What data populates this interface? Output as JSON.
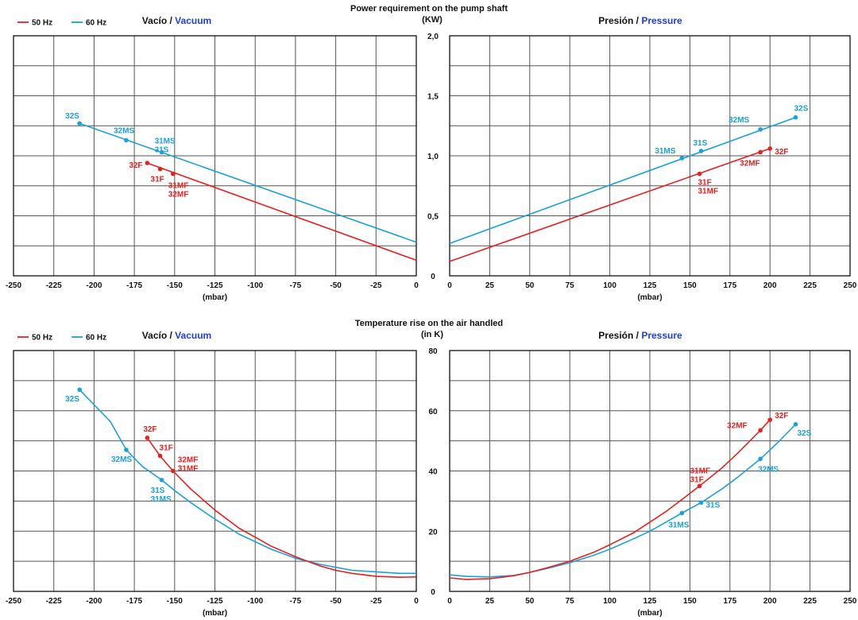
{
  "colors": {
    "hz50": "#e8201f",
    "hz60": "#1aa0dd",
    "accent": "#1f3fd6",
    "grid": "#555555"
  },
  "chart_data": [
    {
      "type": "line",
      "title": "Power requirement on the pump shaft",
      "ylabel": "(KW)",
      "xlabel": "(mbar)",
      "legend": [
        {
          "name": "50 Hz",
          "color": "#e8201f"
        },
        {
          "name": "60 Hz",
          "color": "#1aa0dd"
        }
      ],
      "ylim": [
        0,
        2.0
      ],
      "yticks": [
        "0",
        "0,5",
        "1,0",
        "1,5",
        "2,0"
      ],
      "left": {
        "title_a": "Vacío",
        "title_sep": " / ",
        "title_b": "Vacuum",
        "xlim": [
          -250,
          0
        ],
        "xticks": [
          "-250",
          "-225",
          "-200",
          "-175",
          "-150",
          "-125",
          "-100",
          "-75",
          "-50",
          "-25",
          "0"
        ],
        "series": [
          {
            "name": "60 Hz",
            "x": [
              -209,
              0
            ],
            "y": [
              1.27,
              0.28
            ]
          },
          {
            "name": "50 Hz",
            "x": [
              -167,
              0
            ],
            "y": [
              0.94,
              0.13
            ]
          }
        ],
        "points": [
          {
            "series": "60 Hz",
            "x": -209,
            "y": 1.27,
            "labels": [
              "32S"
            ]
          },
          {
            "series": "60 Hz",
            "x": -180,
            "y": 1.13,
            "labels": [
              "32MS"
            ]
          },
          {
            "series": "60 Hz",
            "x": -158,
            "y": 1.03,
            "labels": [
              "31MS",
              "31S"
            ]
          },
          {
            "series": "50 Hz",
            "x": -167,
            "y": 0.94,
            "labels": [
              "32F"
            ]
          },
          {
            "series": "50 Hz",
            "x": -159,
            "y": 0.89,
            "labels": [
              "31F"
            ]
          },
          {
            "series": "50 Hz",
            "x": -151,
            "y": 0.85,
            "labels": [
              "31MF",
              "32MF"
            ]
          }
        ]
      },
      "right": {
        "title_a": "Presión",
        "title_sep": " / ",
        "title_b": "Pressure",
        "xlim": [
          0,
          250
        ],
        "xticks": [
          "0",
          "25",
          "50",
          "75",
          "100",
          "125",
          "150",
          "175",
          "200",
          "225",
          "250"
        ],
        "series": [
          {
            "name": "60 Hz",
            "x": [
              0,
              216
            ],
            "y": [
              0.27,
              1.32
            ]
          },
          {
            "name": "50 Hz",
            "x": [
              0,
              200
            ],
            "y": [
              0.12,
              1.06
            ]
          }
        ],
        "points": [
          {
            "series": "60 Hz",
            "x": 216,
            "y": 1.32,
            "labels": [
              "32S"
            ]
          },
          {
            "series": "60 Hz",
            "x": 194,
            "y": 1.22,
            "labels": [
              "32MS"
            ]
          },
          {
            "series": "60 Hz",
            "x": 157,
            "y": 1.04,
            "labels": [
              "31S"
            ]
          },
          {
            "series": "60 Hz",
            "x": 145,
            "y": 0.98,
            "labels": [
              "31MS"
            ]
          },
          {
            "series": "50 Hz",
            "x": 200,
            "y": 1.06,
            "labels": [
              "32F"
            ]
          },
          {
            "series": "50 Hz",
            "x": 194,
            "y": 1.03,
            "labels": [
              "32MF"
            ]
          },
          {
            "series": "50 Hz",
            "x": 156,
            "y": 0.85,
            "labels": [
              "31F",
              "31MF"
            ]
          }
        ]
      }
    },
    {
      "type": "line",
      "title": "Temperature rise on the air handled",
      "ylabel": "(in K)",
      "xlabel": "(mbar)",
      "legend": [
        {
          "name": "50 Hz",
          "color": "#e8201f"
        },
        {
          "name": "60 Hz",
          "color": "#1aa0dd"
        }
      ],
      "ylim": [
        0,
        80
      ],
      "yticks": [
        "0",
        "20",
        "40",
        "60",
        "80"
      ],
      "left": {
        "title_a": "Vacío",
        "title_sep": " / ",
        "title_b": "Vacuum",
        "xlim": [
          -250,
          0
        ],
        "xticks": [
          "-250",
          "-225",
          "-200",
          "-175",
          "-150",
          "-125",
          "-100",
          "-75",
          "-50",
          "-25",
          "0"
        ],
        "series": [
          {
            "name": "60 Hz",
            "x": [
              -209,
              -200,
              -190,
              -180,
              -170,
              -158,
              -150,
              -140,
              -125,
              -110,
              -100,
              -90,
              -75,
              -60,
              -50,
              -40,
              -25,
              -10,
              0
            ],
            "y": [
              67,
              62,
              56.5,
              47,
              41.5,
              37,
              33.5,
              29.5,
              24,
              19,
              16.5,
              14,
              11,
              9,
              8,
              7,
              6.5,
              6,
              6
            ]
          },
          {
            "name": "50 Hz",
            "x": [
              -167,
              -159,
              -151,
              -140,
              -125,
              -110,
              -100,
              -90,
              -75,
              -60,
              -50,
              -40,
              -25,
              -10,
              0
            ],
            "y": [
              51,
              45,
              40,
              34,
              27,
              21,
              18,
              15,
              11.5,
              8.5,
              7,
              6,
              5,
              4.7,
              4.8
            ]
          }
        ],
        "points": [
          {
            "series": "60 Hz",
            "x": -209,
            "y": 67,
            "labels": [
              "32S"
            ]
          },
          {
            "series": "60 Hz",
            "x": -180,
            "y": 47,
            "labels": [
              "32MS"
            ]
          },
          {
            "series": "60 Hz",
            "x": -158,
            "y": 37,
            "labels": [
              "31S",
              "31MS"
            ]
          },
          {
            "series": "50 Hz",
            "x": -167,
            "y": 51,
            "labels": [
              "32F"
            ]
          },
          {
            "series": "50 Hz",
            "x": -159,
            "y": 45,
            "labels": [
              "31F"
            ]
          },
          {
            "series": "50 Hz",
            "x": -151,
            "y": 40,
            "labels": [
              "32MF",
              "31MF"
            ]
          }
        ]
      },
      "right": {
        "title_a": "Presión",
        "title_sep": " / ",
        "title_b": "Pressure",
        "xlim": [
          0,
          250
        ],
        "xticks": [
          "0",
          "25",
          "50",
          "75",
          "100",
          "125",
          "150",
          "175",
          "200",
          "225",
          "250"
        ],
        "series": [
          {
            "name": "60 Hz",
            "x": [
              0,
              10,
              25,
              40,
              50,
              60,
              75,
              90,
              100,
              115,
              125,
              135,
              145,
              157,
              170,
              180,
              194,
              205,
              216
            ],
            "y": [
              5.5,
              5,
              4.8,
              5.3,
              6.3,
              7.5,
              9.5,
              12,
              14,
              17.5,
              20,
              23,
              26,
              29.5,
              34,
              38,
              44,
              49.5,
              55.5
            ]
          },
          {
            "name": "50 Hz",
            "x": [
              0,
              10,
              25,
              40,
              50,
              60,
              75,
              90,
              100,
              115,
              125,
              135,
              145,
              156,
              170,
              180,
              194,
              200
            ],
            "y": [
              4.5,
              4,
              4.2,
              5.2,
              6.3,
              7.7,
              10,
              13,
              15.5,
              19.5,
              23,
              26.5,
              30.5,
              35,
              41,
              46,
              53.5,
              57
            ]
          }
        ],
        "points": [
          {
            "series": "60 Hz",
            "x": 216,
            "y": 55.5,
            "labels": [
              "32S"
            ]
          },
          {
            "series": "60 Hz",
            "x": 194,
            "y": 44,
            "labels": [
              "32MS"
            ]
          },
          {
            "series": "60 Hz",
            "x": 157,
            "y": 29.5,
            "labels": [
              "31S"
            ]
          },
          {
            "series": "60 Hz",
            "x": 145,
            "y": 26,
            "labels": [
              "31MS"
            ]
          },
          {
            "series": "50 Hz",
            "x": 200,
            "y": 57,
            "labels": [
              "32F"
            ]
          },
          {
            "series": "50 Hz",
            "x": 194,
            "y": 53.5,
            "labels": [
              "32MF"
            ]
          },
          {
            "series": "50 Hz",
            "x": 156,
            "y": 35,
            "labels": [
              "31MF",
              "31F"
            ]
          }
        ]
      }
    }
  ]
}
